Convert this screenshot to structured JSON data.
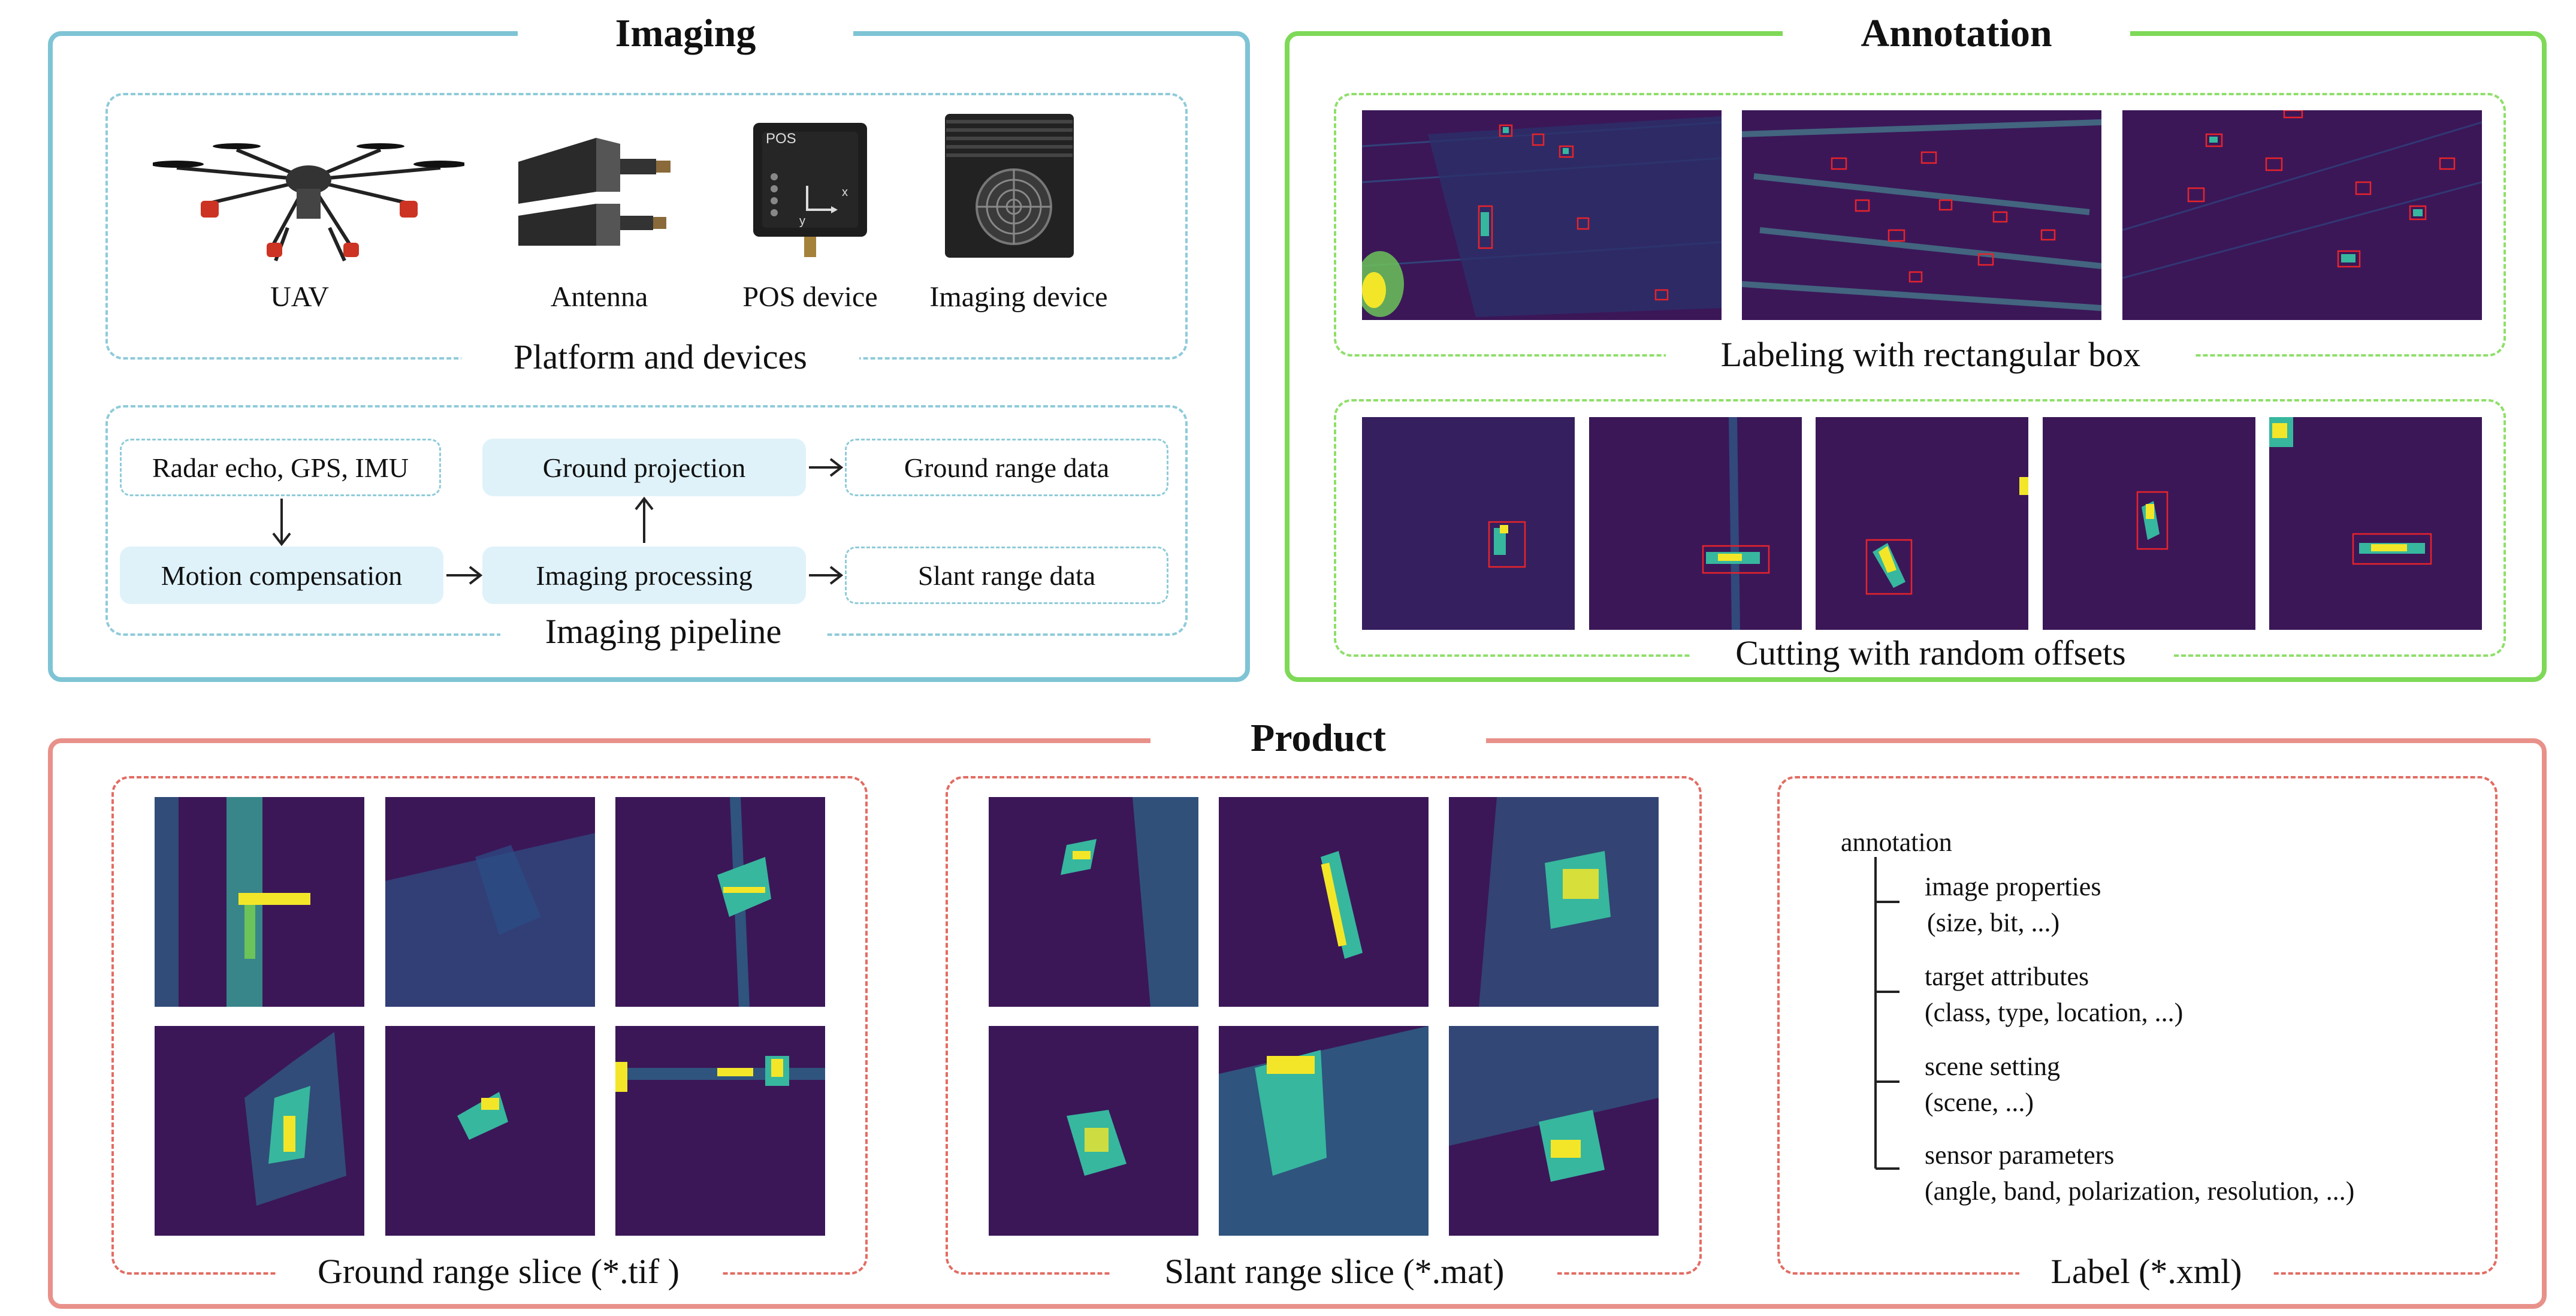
{
  "colors": {
    "imaging": "#7ec4d5",
    "annotation": "#7ed957",
    "product": "#e8918a",
    "box_fill": "#dff2fa",
    "sar_background": "#3b1758",
    "sar_highlight": "#f3e629",
    "label_box": "#e8232a"
  },
  "imaging": {
    "title": "Imaging",
    "platform": {
      "caption": "Platform and devices",
      "devices": [
        {
          "label": "UAV",
          "icon": "uav-drone-icon"
        },
        {
          "label": "Antenna",
          "icon": "antenna-icon"
        },
        {
          "label": "POS device",
          "icon": "pos-device-icon"
        },
        {
          "label": "Imaging device",
          "icon": "imaging-device-icon"
        }
      ],
      "pos_device_print": "POS",
      "pos_axis_x": "x",
      "pos_axis_y": "y"
    },
    "pipeline": {
      "caption": "Imaging pipeline",
      "radar_echo": "Radar echo, GPS, IMU",
      "motion_compensation": "Motion compensation",
      "imaging_processing": "Imaging processing",
      "ground_projection": "Ground projection",
      "ground_range_data": "Ground range data",
      "slant_range_data": "Slant range data"
    }
  },
  "annotation": {
    "title": "Annotation",
    "labeling_caption": "Labeling with rectangular box",
    "cutting_caption": "Cutting with random offsets"
  },
  "product": {
    "title": "Product",
    "ground_caption": "Ground range slice (*.tif )",
    "slant_caption": "Slant range slice (*.mat)",
    "label_caption": "Label (*.xml)",
    "tree": {
      "root": "annotation",
      "items": [
        {
          "name": "image properties",
          "detail": "(size, bit, ...)"
        },
        {
          "name": "target attributes",
          "detail": "(class, type, location, ...)"
        },
        {
          "name": "scene setting",
          "detail": "(scene, ...)"
        },
        {
          "name": "sensor parameters",
          "detail": "(angle, band, polarization, resolution, ...)"
        }
      ]
    }
  }
}
